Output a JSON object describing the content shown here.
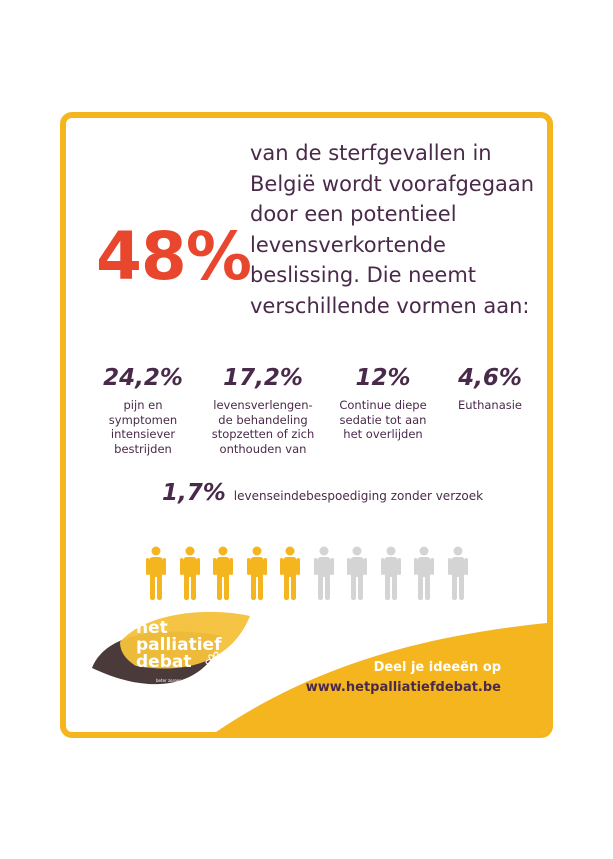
{
  "headline": {
    "percentage": "48%",
    "lines": [
      "van de sterfgevallen in",
      "België wordt voorafgegaan",
      "door een potentieel",
      "levensverkortende",
      "beslissing. Die neemt",
      "verschillende vormen aan:"
    ]
  },
  "stats": [
    {
      "value": "24,2%",
      "label_lines": [
        "pijn en",
        "symptomen",
        "intensiever",
        "bestrijden"
      ]
    },
    {
      "value": "17,2%",
      "label_lines": [
        "levensverlengen-",
        "de behandeling",
        "stopzetten of zich",
        "onthouden van"
      ]
    },
    {
      "value": "12%",
      "label_lines": [
        "Continue diepe",
        "sedatie tot aan",
        "het overlijden"
      ]
    },
    {
      "value": "4,6%",
      "label_lines": [
        "Euthanasie"
      ]
    }
  ],
  "extra_stat": {
    "value": "1,7%",
    "label": "levenseindebespoediging zonder verzoek"
  },
  "pictogram": {
    "highlighted": 5,
    "total": 10,
    "highlight_color": "#f5b51e",
    "base_color": "#d4d4d4"
  },
  "logo": {
    "lines": [
      "het",
      "palliatief",
      "debat"
    ],
    "tagline": "beter zorgen voor wie niet meer beter wordt",
    "colors": {
      "dark": "#4a3a3a",
      "yellow": "#f5c13a"
    }
  },
  "cta": {
    "line1": "Deel je ideeën op",
    "line2": "www.hetpalliatiefdebat.be"
  },
  "colors": {
    "frame": "#f5b51e",
    "accent_red": "#e8472e",
    "text": "#4a2a4a"
  }
}
